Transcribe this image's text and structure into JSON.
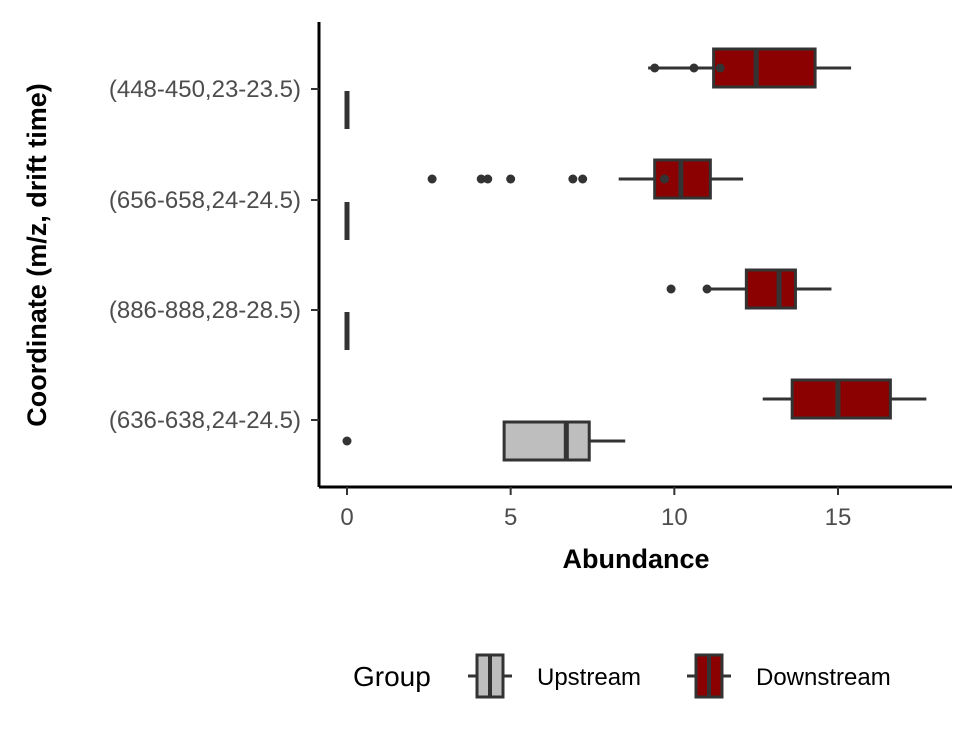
{
  "chart_data": {
    "type": "boxplot",
    "orientation": "horizontal",
    "xlabel": "Abundance",
    "ylabel": "Coordinate (m/z, drift time)",
    "xlim": [
      0,
      18
    ],
    "xticks": [
      0,
      5,
      10,
      15
    ],
    "grid": false,
    "legend_position": "bottom",
    "legend_title": "Group",
    "categories": [
      "(448-450,23-23.5)",
      "(656-658,24-24.5)",
      "(886-888,28-28.5)",
      "(636-638,24-24.5)"
    ],
    "series": [
      {
        "name": "Upstream",
        "color": "#bebebe",
        "boxes": [
          {
            "category": "(448-450,23-23.5)",
            "whisker_low": 0,
            "q1": 0,
            "median": 0,
            "q3": 0,
            "whisker_high": 0,
            "outliers": []
          },
          {
            "category": "(656-658,24-24.5)",
            "whisker_low": 0,
            "q1": 0,
            "median": 0,
            "q3": 0,
            "whisker_high": 0,
            "outliers": []
          },
          {
            "category": "(886-888,28-28.5)",
            "whisker_low": 0,
            "q1": 0,
            "median": 0,
            "q3": 0,
            "whisker_high": 0,
            "outliers": []
          },
          {
            "category": "(636-638,24-24.5)",
            "whisker_low": 4.8,
            "q1": 4.8,
            "median": 6.7,
            "q3": 7.4,
            "whisker_high": 8.5,
            "outliers": [
              0
            ]
          }
        ]
      },
      {
        "name": "Downstream",
        "color": "#8b0000",
        "boxes": [
          {
            "category": "(448-450,23-23.5)",
            "whisker_low": 9.2,
            "q1": 11.2,
            "median": 12.5,
            "q3": 14.3,
            "whisker_high": 15.4,
            "outliers": [
              9.4,
              10.6,
              11.4
            ]
          },
          {
            "category": "(656-658,24-24.5)",
            "whisker_low": 8.3,
            "q1": 9.4,
            "median": 10.2,
            "q3": 11.1,
            "whisker_high": 12.1,
            "outliers": [
              2.6,
              4.1,
              4.3,
              5.0,
              6.9,
              7.2,
              9.7
            ]
          },
          {
            "category": "(886-888,28-28.5)",
            "whisker_low": 11.0,
            "q1": 12.2,
            "median": 13.2,
            "q3": 13.7,
            "whisker_high": 14.8,
            "outliers": [
              9.9,
              11.0
            ]
          },
          {
            "category": "(636-638,24-24.5)",
            "whisker_low": 12.7,
            "q1": 13.6,
            "median": 15.0,
            "q3": 16.6,
            "whisker_high": 17.7,
            "outliers": []
          }
        ]
      }
    ],
    "legend_entries": [
      "Upstream",
      "Downstream"
    ],
    "outline_color": "#333333"
  }
}
